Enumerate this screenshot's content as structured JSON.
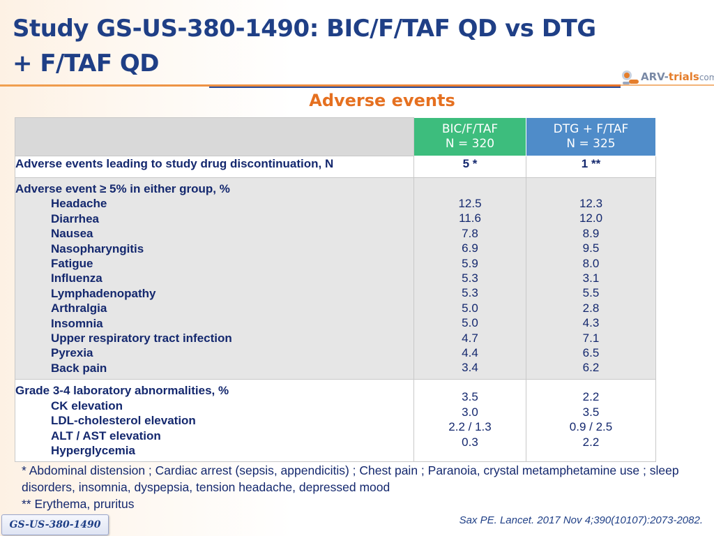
{
  "title": "Study GS-US-380-1490: BIC/F/TAF QD vs DTG + F/TAF QD",
  "logo": {
    "part1": "ARV-",
    "part2": "trials",
    "part3": "com"
  },
  "subtitle": "Adverse events",
  "columns": [
    {
      "line1": "BIC/F/TAF",
      "line2": "N = 320",
      "color": "#3dbd7d"
    },
    {
      "line1": "DTG + F/TAF",
      "line2": "N = 325",
      "color": "#4f8cc9"
    }
  ],
  "discontinuation": {
    "label": "Adverse events leading to study drug discontinuation, N",
    "bic": "5 *",
    "dtg": "1 **"
  },
  "ae_section": {
    "label": "Adverse event ≥ 5% in either group, %",
    "items": [
      {
        "name": "Headache",
        "bic": "12.5",
        "dtg": "12.3"
      },
      {
        "name": "Diarrhea",
        "bic": "11.6",
        "dtg": "12.0"
      },
      {
        "name": "Nausea",
        "bic": "7.8",
        "dtg": "8.9"
      },
      {
        "name": "Nasopharyngitis",
        "bic": "6.9",
        "dtg": "9.5"
      },
      {
        "name": "Fatigue",
        "bic": "5.9",
        "dtg": "8.0"
      },
      {
        "name": "Influenza",
        "bic": "5.3",
        "dtg": "3.1"
      },
      {
        "name": "Lymphadenopathy",
        "bic": "5.3",
        "dtg": "5.5"
      },
      {
        "name": "Arthralgia",
        "bic": "5.0",
        "dtg": "2.8"
      },
      {
        "name": "Insomnia",
        "bic": "5.0",
        "dtg": "4.3"
      },
      {
        "name": "Upper respiratory tract infection",
        "bic": "4.7",
        "dtg": "7.1"
      },
      {
        "name": "Pyrexia",
        "bic": "4.4",
        "dtg": "6.5"
      },
      {
        "name": "Back pain",
        "bic": "3.4",
        "dtg": "6.2"
      }
    ]
  },
  "lab_section": {
    "label": "Grade 3-4 laboratory abnormalities, %",
    "items": [
      {
        "name": "CK elevation",
        "bic": "3.5",
        "dtg": "2.2"
      },
      {
        "name": "LDL-cholesterol elevation",
        "bic": "3.0",
        "dtg": "3.5"
      },
      {
        "name": "ALT / AST elevation",
        "bic": "2.2 / 1.3",
        "dtg": "0.9 / 2.5"
      },
      {
        "name": "Hyperglycemia",
        "bic": "0.3",
        "dtg": "2.2"
      }
    ]
  },
  "footnotes": [
    "* Abdominal distension ; Cardiac arrest (sepsis, appendicitis) ; Chest pain ; Paranoia, crystal metamphetamine use ; sleep disorders, insomnia, dyspepsia, tension headache, depressed mood",
    "** Erythema, pruritus"
  ],
  "study_tag": "GS-US-380-1490",
  "reference": "Sax PE. Lancet. 2017 Nov 4;390(10107):2073-2082."
}
